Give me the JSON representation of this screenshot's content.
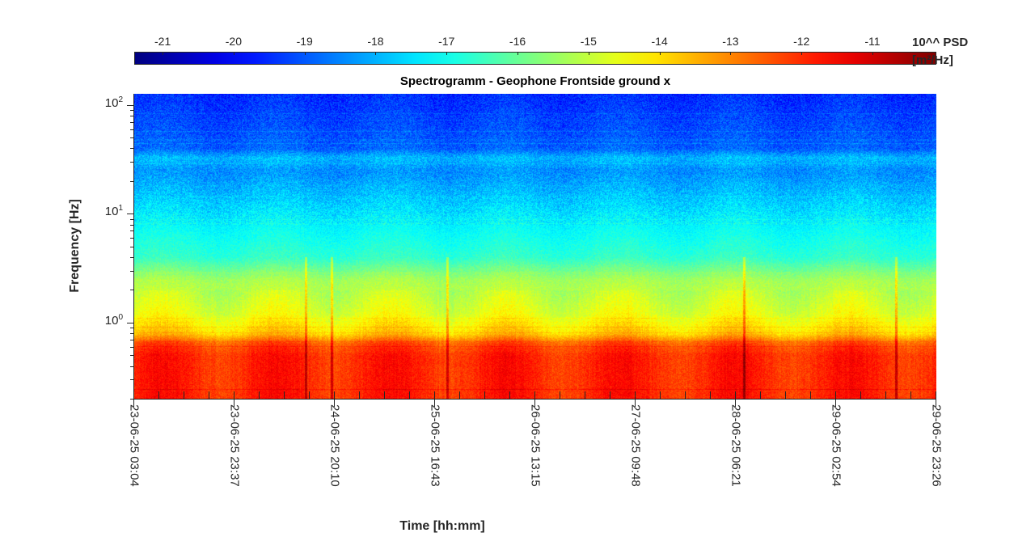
{
  "chart_data": {
    "type": "heatmap",
    "title": "Spectrogramm - Geophone Frontside ground x",
    "xlabel": "Time [hh:mm]",
    "ylabel": "Frequency [Hz]",
    "yscale": "log",
    "ylim": [
      0.2,
      127
    ],
    "y_ticks": [
      {
        "value": 1,
        "label": "10",
        "exp": "0"
      },
      {
        "value": 10,
        "label": "10",
        "exp": "1"
      },
      {
        "value": 100,
        "label": "10",
        "exp": "2"
      }
    ],
    "x_tick_labels": [
      "23-06-25 03:04",
      "23-06-25 23:37",
      "24-06-25 20:10",
      "25-06-25 16:43",
      "26-06-25 13:15",
      "27-06-25 09:48",
      "28-06-25 06:21",
      "29-06-25 02:54",
      "29-06-25 23:26"
    ],
    "colorbar": {
      "label_line1": "10^^ PSD",
      "label_line2": "[m²/Hz]",
      "colormap": "jet",
      "clim": [
        -21.4,
        -10.1
      ],
      "ticks": [
        -21,
        -20,
        -19,
        -18,
        -17,
        -16,
        -15,
        -14,
        -13,
        -12,
        -11
      ]
    },
    "mean_log_psd_profile": [
      {
        "freq": 0.2,
        "log_psd": -11.9
      },
      {
        "freq": 0.5,
        "log_psd": -11.9
      },
      {
        "freq": 0.65,
        "log_psd": -12.4
      },
      {
        "freq": 0.8,
        "log_psd": -13.8
      },
      {
        "freq": 1.2,
        "log_psd": -14.6
      },
      {
        "freq": 2.5,
        "log_psd": -15.3
      },
      {
        "freq": 4,
        "log_psd": -16.6
      },
      {
        "freq": 10,
        "log_psd": -17.4
      },
      {
        "freq": 25,
        "log_psd": -18.4
      },
      {
        "freq": 33,
        "log_psd": -17.9
      },
      {
        "freq": 40,
        "log_psd": -18.9
      },
      {
        "freq": 127,
        "log_psd": -19.5
      }
    ],
    "transient_events_time_fraction": [
      0.214,
      0.246,
      0.39,
      0.76,
      0.95
    ]
  }
}
